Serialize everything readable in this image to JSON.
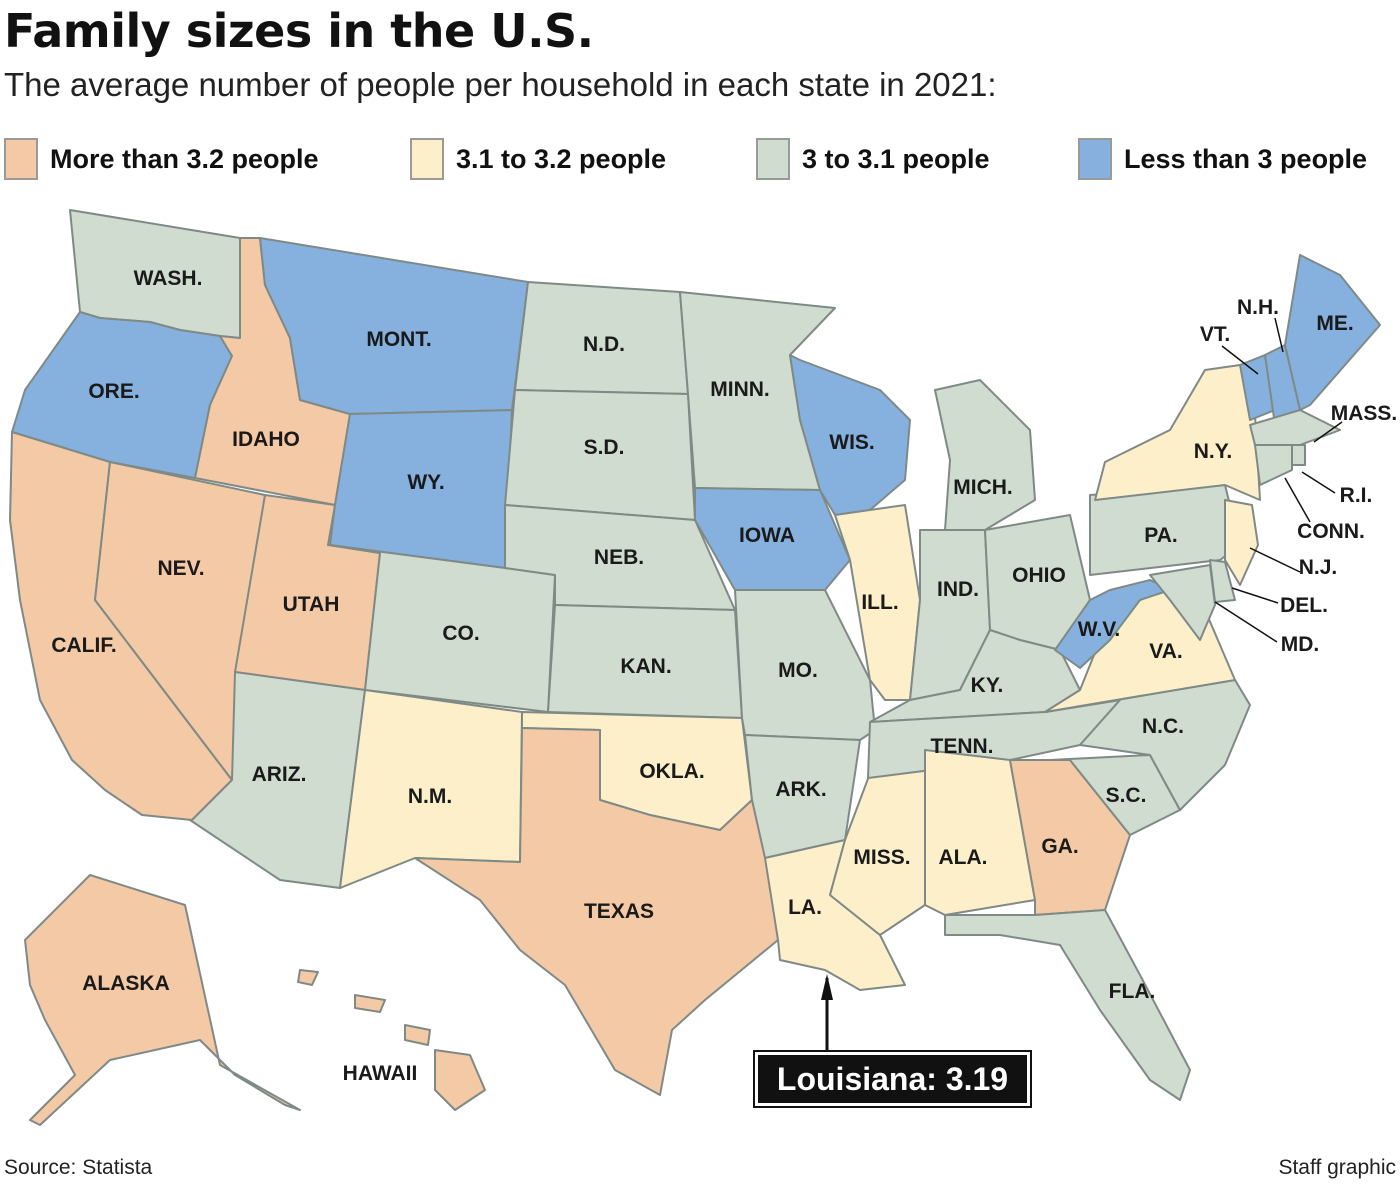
{
  "header": {
    "title": "Family sizes in the U.S.",
    "subtitle": "The average number of people per household in each state in 2021:"
  },
  "legend": [
    {
      "label": "More than 3.2 people",
      "color": "#f4c9a6"
    },
    {
      "label": "3.1 to 3.2 people",
      "color": "#fdefca"
    },
    {
      "label": "3 to 3.1 people",
      "color": "#cfdccf"
    },
    {
      "label": "Less than 3 people",
      "color": "#86b1de"
    }
  ],
  "states": [
    {
      "id": "wa",
      "label": "WASH.",
      "category": 2
    },
    {
      "id": "or",
      "label": "ORE.",
      "category": 3
    },
    {
      "id": "ca",
      "label": "CALIF.",
      "category": 0
    },
    {
      "id": "id",
      "label": "IDAHO",
      "category": 0
    },
    {
      "id": "nv",
      "label": "NEV.",
      "category": 0
    },
    {
      "id": "ut",
      "label": "UTAH",
      "category": 0
    },
    {
      "id": "az",
      "label": "ARIZ.",
      "category": 2
    },
    {
      "id": "mt",
      "label": "MONT.",
      "category": 3
    },
    {
      "id": "wy",
      "label": "WY.",
      "category": 3
    },
    {
      "id": "co",
      "label": "CO.",
      "category": 2
    },
    {
      "id": "nm",
      "label": "N.M.",
      "category": 1
    },
    {
      "id": "nd",
      "label": "N.D.",
      "category": 2
    },
    {
      "id": "sd",
      "label": "S.D.",
      "category": 2
    },
    {
      "id": "ne",
      "label": "NEB.",
      "category": 2
    },
    {
      "id": "ks",
      "label": "KAN.",
      "category": 2
    },
    {
      "id": "ok",
      "label": "OKLA.",
      "category": 1
    },
    {
      "id": "tx",
      "label": "TEXAS",
      "category": 0
    },
    {
      "id": "mn",
      "label": "MINN.",
      "category": 2
    },
    {
      "id": "ia",
      "label": "IOWA",
      "category": 3
    },
    {
      "id": "mo",
      "label": "MO.",
      "category": 2
    },
    {
      "id": "ar",
      "label": "ARK.",
      "category": 2
    },
    {
      "id": "la",
      "label": "LA.",
      "category": 1
    },
    {
      "id": "wi",
      "label": "WIS.",
      "category": 3
    },
    {
      "id": "il",
      "label": "ILL.",
      "category": 1
    },
    {
      "id": "ms",
      "label": "MISS.",
      "category": 1
    },
    {
      "id": "mi",
      "label": "MICH.",
      "category": 2
    },
    {
      "id": "in",
      "label": "IND.",
      "category": 2
    },
    {
      "id": "oh",
      "label": "OHIO",
      "category": 2
    },
    {
      "id": "ky",
      "label": "KY.",
      "category": 2
    },
    {
      "id": "tn",
      "label": "TENN.",
      "category": 2
    },
    {
      "id": "al",
      "label": "ALA.",
      "category": 1
    },
    {
      "id": "ga",
      "label": "GA.",
      "category": 0
    },
    {
      "id": "fl",
      "label": "FLA.",
      "category": 2
    },
    {
      "id": "sc",
      "label": "S.C.",
      "category": 2
    },
    {
      "id": "nc",
      "label": "N.C.",
      "category": 2
    },
    {
      "id": "va",
      "label": "VA.",
      "category": 1
    },
    {
      "id": "wv",
      "label": "W.V.",
      "category": 3
    },
    {
      "id": "pa",
      "label": "PA.",
      "category": 2
    },
    {
      "id": "ny",
      "label": "N.Y.",
      "category": 1
    },
    {
      "id": "vt",
      "label": "VT.",
      "category": 3
    },
    {
      "id": "nh",
      "label": "N.H.",
      "category": 3
    },
    {
      "id": "me",
      "label": "ME.",
      "category": 3
    },
    {
      "id": "ma",
      "label": "MASS.",
      "category": 2
    },
    {
      "id": "ri",
      "label": "R.I.",
      "category": 2
    },
    {
      "id": "ct",
      "label": "CONN.",
      "category": 2
    },
    {
      "id": "nj",
      "label": "N.J.",
      "category": 1
    },
    {
      "id": "de",
      "label": "DEL.",
      "category": 2
    },
    {
      "id": "md",
      "label": "MD.",
      "category": 2
    },
    {
      "id": "ak",
      "label": "ALASKA",
      "category": 0
    },
    {
      "id": "hi",
      "label": "HAWAII",
      "category": 0
    }
  ],
  "callout": {
    "text": "Louisiana: 3.19",
    "state": "la",
    "value": 3.19
  },
  "footer": {
    "source": "Source: Statista",
    "credit": "Staff graphic"
  }
}
